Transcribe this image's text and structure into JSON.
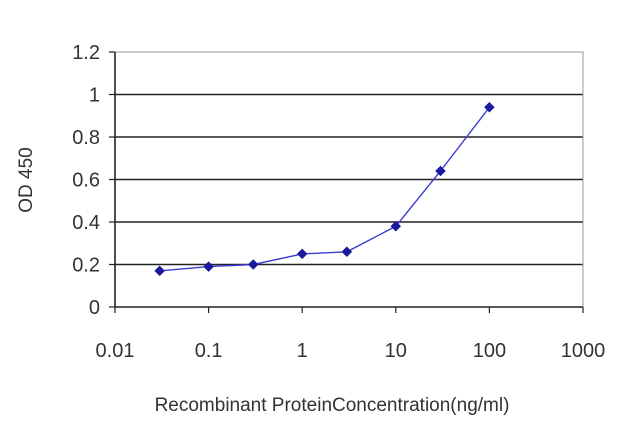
{
  "chart_data": {
    "type": "line",
    "xscale": "log",
    "xlim": [
      0.01,
      1000
    ],
    "ylim": [
      0,
      1.2
    ],
    "xticks": [
      "0.01",
      "0.1",
      "1",
      "10",
      "100",
      "1000"
    ],
    "xtick_values": [
      0.01,
      0.1,
      1,
      10,
      100,
      1000
    ],
    "yticks": [
      "0",
      "0.2",
      "0.4",
      "0.6",
      "0.8",
      "1",
      "1.2"
    ],
    "ytick_values": [
      0,
      0.2,
      0.4,
      0.6,
      0.8,
      1,
      1.2
    ],
    "xlabel": "Recombinant ProteinConcentration(ng/ml)",
    "ylabel": "OD 450",
    "grid": "horizontal",
    "legend": "none",
    "series": [
      {
        "x": [
          0.03,
          0.1,
          0.3,
          1,
          3,
          10,
          30,
          100
        ],
        "y": [
          0.17,
          0.19,
          0.2,
          0.25,
          0.26,
          0.38,
          0.64,
          0.94
        ]
      }
    ],
    "colors": {
      "line": "#3c3cd2",
      "marker": "#1a1a9c",
      "grid": "#222222",
      "frame": "#9a9a9a",
      "text": "#333333"
    }
  }
}
